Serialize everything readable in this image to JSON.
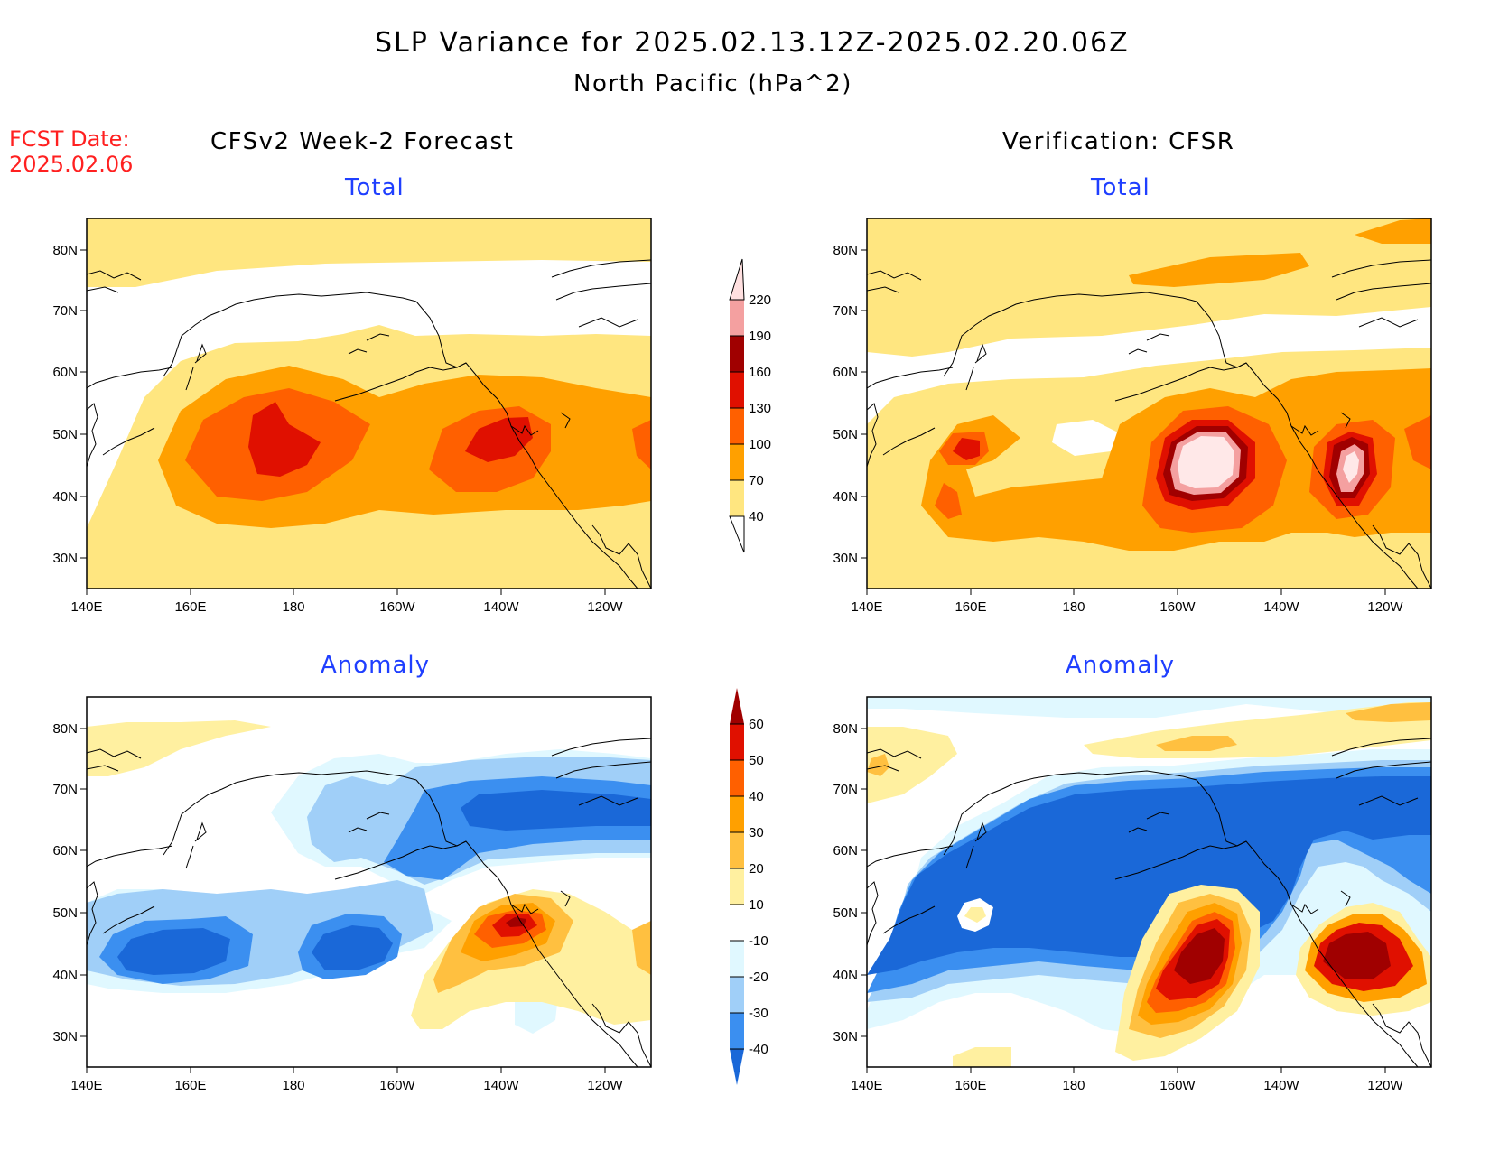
{
  "header": {
    "title": "SLP Variance for 2025.02.13.12Z-2025.02.20.06Z",
    "subtitle": "North Pacific (hPa^2)",
    "fcst_label": "FCST Date:",
    "fcst_date": "2025.02.06"
  },
  "columns": {
    "left": "CFSv2 Week-2 Forecast",
    "right": "Verification: CFSR"
  },
  "panels": {
    "top_left": "Total",
    "top_right": "Total",
    "bottom_left": "Anomaly",
    "bottom_right": "Anomaly"
  },
  "axes": {
    "lon_ticks": [
      "140E",
      "160E",
      "180",
      "160W",
      "140W",
      "120W"
    ],
    "lat_ticks": [
      "80N",
      "70N",
      "60N",
      "50N",
      "40N",
      "30N"
    ]
  },
  "legends": {
    "total": {
      "levels": [
        "40",
        "70",
        "100",
        "130",
        "160",
        "190",
        "220"
      ],
      "colors": [
        "#ffe680",
        "#ffa000",
        "#ff6000",
        "#e01000",
        "#a00000",
        "#f4a0a0",
        "#ffe0e0"
      ]
    },
    "anomaly": {
      "levels": [
        "-40",
        "-30",
        "-20",
        "-10",
        "10",
        "20",
        "30",
        "40",
        "50",
        "60"
      ],
      "colors": [
        "#1a68d8",
        "#3b8ff0",
        "#a0cff8",
        "#e0f8ff",
        "#ffffff",
        "#fff0a0",
        "#ffc040",
        "#ffa000",
        "#ff6000",
        "#e01000",
        "#a00000"
      ]
    }
  }
}
